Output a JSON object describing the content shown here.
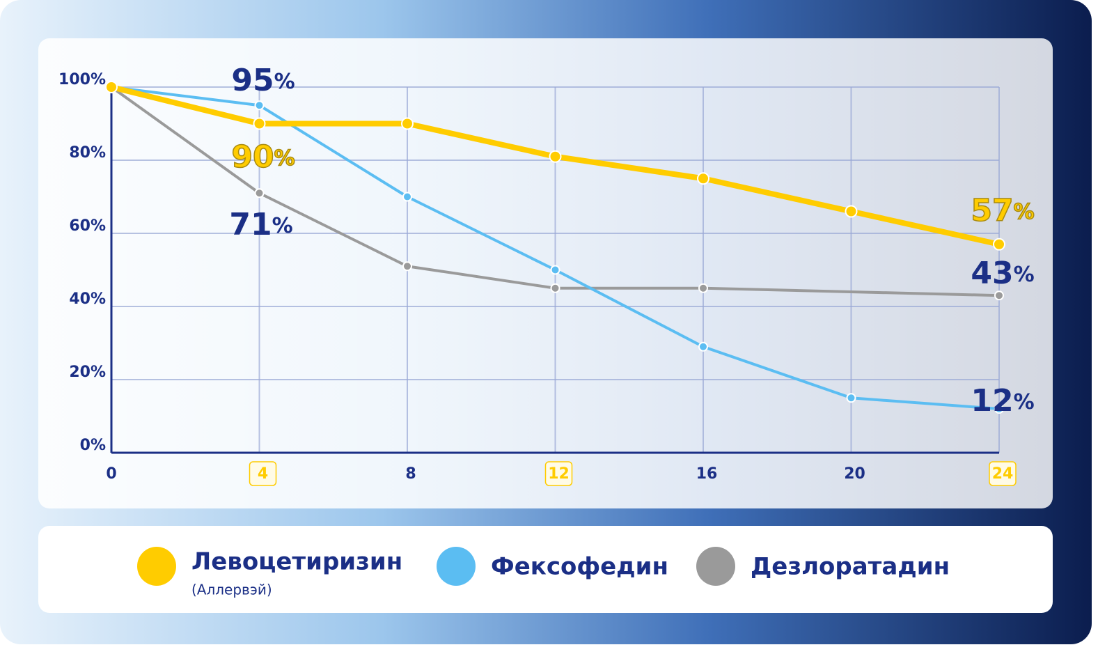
{
  "chart_data": {
    "type": "line",
    "x": [
      0,
      4,
      8,
      12,
      16,
      20,
      24
    ],
    "xlim": [
      0,
      24
    ],
    "xticks": [
      0,
      4,
      8,
      12,
      16,
      20,
      24
    ],
    "highlight_xticks": [
      4,
      12,
      24
    ],
    "ylim": [
      0,
      100
    ],
    "yticks": [
      {
        "value": 0,
        "label": "0%"
      },
      {
        "value": 20,
        "label": "20%"
      },
      {
        "value": 40,
        "label": "40%"
      },
      {
        "value": 60,
        "label": "60%"
      },
      {
        "value": 80,
        "label": "80%"
      },
      {
        "value": 100,
        "label": "100%"
      }
    ],
    "grid": true,
    "series": [
      {
        "name": "Левоцетиризин",
        "subname": "(Аллервэй)",
        "color": "#ffcc00",
        "width": 8,
        "x": [
          0,
          4,
          8,
          12,
          16,
          20,
          24
        ],
        "values": [
          100,
          90,
          90,
          81,
          75,
          66,
          57
        ],
        "value_labels": [
          null,
          "90%",
          null,
          null,
          null,
          null,
          "57%"
        ]
      },
      {
        "name": "Фексофедин",
        "color": "#5bbdf2",
        "width": 4,
        "x": [
          0,
          4,
          8,
          12,
          16,
          20,
          24
        ],
        "values": [
          100,
          95,
          70,
          50,
          29,
          15,
          12
        ],
        "value_labels": [
          null,
          "95%",
          null,
          null,
          null,
          null,
          "12%"
        ]
      },
      {
        "name": "Дезлоратадин",
        "color": "#9a9a9a",
        "width": 4,
        "x": [
          0,
          4,
          8,
          12,
          16,
          24
        ],
        "values": [
          100,
          71,
          51,
          45,
          45,
          43
        ],
        "value_labels": [
          null,
          "71%",
          null,
          null,
          null,
          "43%"
        ]
      }
    ]
  }
}
